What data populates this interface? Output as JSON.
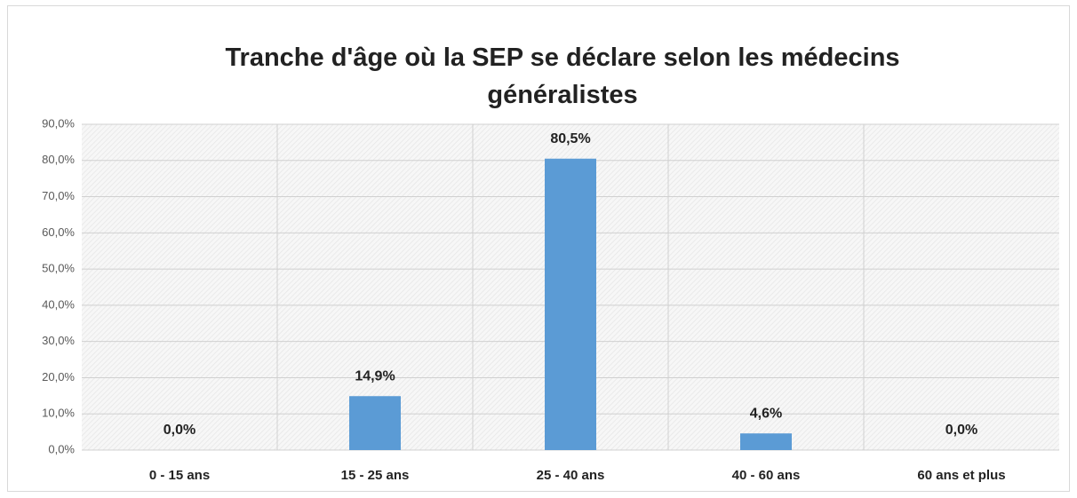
{
  "chart_data": {
    "type": "bar",
    "title": "Tranche d'âge où la SEP se déclare selon les médecins généralistes",
    "categories": [
      "0 - 15 ans",
      "15 - 25 ans",
      "25 - 40 ans",
      "40 - 60 ans",
      "60 ans et plus"
    ],
    "values": [
      0,
      14.9,
      80.5,
      4.6,
      0
    ],
    "value_labels": [
      "0,0%",
      "14,9%",
      "80,5%",
      "4,6%",
      "0,0%"
    ],
    "color": "#5b9bd5",
    "ylim": [
      0,
      90
    ],
    "yticks": [
      {
        "value": 0,
        "label": "0,0%"
      },
      {
        "value": 10,
        "label": "10,0%"
      },
      {
        "value": 20,
        "label": "20,0%"
      },
      {
        "value": 30,
        "label": "30,0%"
      },
      {
        "value": 40,
        "label": "40,0%"
      },
      {
        "value": 50,
        "label": "50,0%"
      },
      {
        "value": 60,
        "label": "60,0%"
      },
      {
        "value": 70,
        "label": "70,0%"
      },
      {
        "value": 80,
        "label": "80,0%"
      },
      {
        "value": 90,
        "label": "90,0%"
      }
    ],
    "grid": true
  }
}
